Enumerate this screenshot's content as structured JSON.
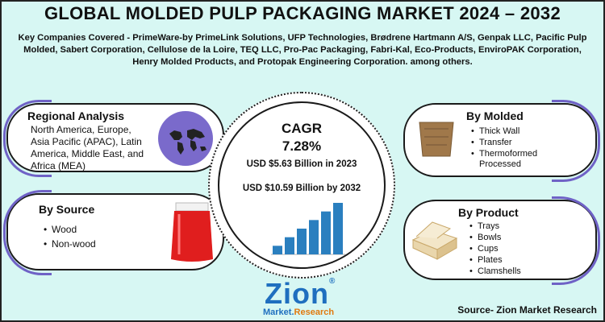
{
  "title": "GLOBAL MOLDED PULP PACKAGING MARKET 2024 – 2032",
  "companies_text": "Key Companies Covered - PrimeWare-by PrimeLink Solutions, UFP Technologies, Brødrene Hartmann A/S, Genpak LLC, Pacific Pulp Molded, Sabert Corporation, Cellulose de la Loire, TEQ LLC, Pro-Pac Packaging, Fabri-Kal, Eco-Products, EnviroPAK Corporation, Henry Molded Products, and Protopak Engineering Corporation. among others.",
  "regional": {
    "title": "Regional Analysis",
    "text": "North America, Europe, Asia Pacific (APAC), Latin America, Middle East, and Africa (MEA)",
    "icon": "world-map-icon"
  },
  "source_panel": {
    "title": "By Source",
    "items": [
      "Wood",
      "Non-wood"
    ],
    "icon": "pouch-icon"
  },
  "molded": {
    "title": "By Molded",
    "items": [
      "Thick Wall",
      "Transfer",
      "Thermoformed"
    ],
    "subline": "Processed",
    "icon": "pulp-tray-icon"
  },
  "product": {
    "title": "By Product",
    "items": [
      "Trays",
      "Bowls",
      "Cups",
      "Plates",
      "Clamshells"
    ],
    "icon": "clamshell-icon"
  },
  "center": {
    "cagr_label": "CAGR",
    "cagr_value": "7.28%",
    "usd_2023": "USD $5.63 Billion in 2023",
    "usd_2032": "USD $10.59 Billion by 2032"
  },
  "mini_chart": {
    "type": "bar",
    "values": [
      1,
      2,
      3,
      4,
      5,
      6
    ],
    "color": "#2a7fbf"
  },
  "logo": {
    "main": "Zion",
    "market": "Market.",
    "research": "Research",
    "registered": "®"
  },
  "footer_source": "Source- Zion Market Research",
  "colors": {
    "background": "#d7f7f3",
    "accent_purple": "#6f62c6",
    "logo_blue": "#1f6fbf",
    "logo_orange": "#e07a10"
  }
}
